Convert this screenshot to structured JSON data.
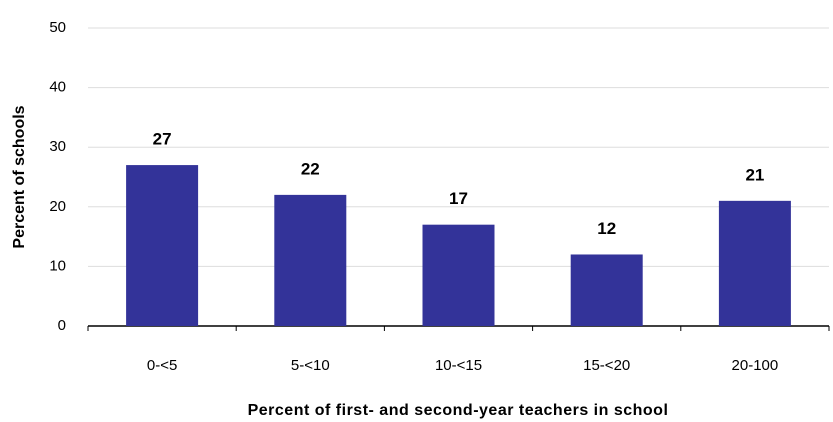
{
  "chart_data": {
    "type": "bar",
    "x_label": "Percent of first- and second-year teachers in school",
    "y_label": "Percent of schools",
    "categories": [
      "0-<5",
      "5-<10",
      "10-<15",
      "15-<20",
      "20-100"
    ],
    "values": [
      27,
      22,
      17,
      12,
      21
    ],
    "color": "#333399",
    "ylim": [
      0,
      50
    ],
    "yticks": [
      0,
      10,
      20,
      30,
      40,
      50
    ],
    "grid": true
  }
}
